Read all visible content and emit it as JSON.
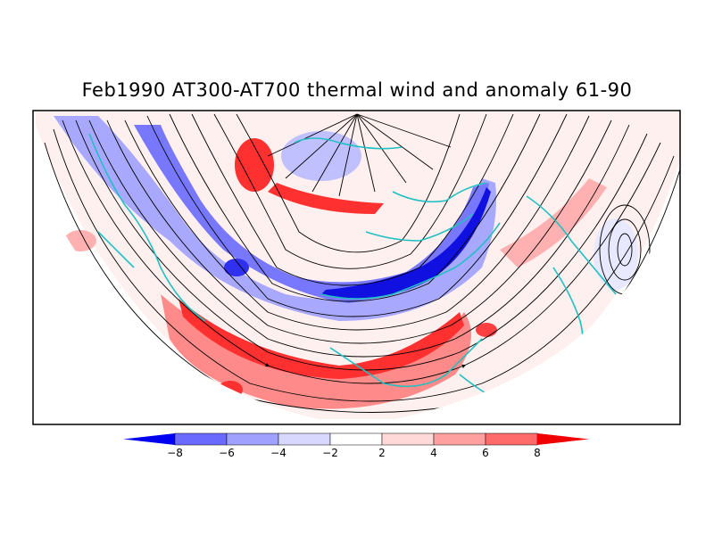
{
  "title": "Feb1990 AT300-AT700 thermal wind and anomaly 61-90",
  "colorbar": {
    "labels": [
      "-8",
      "-6",
      "-4",
      "-2",
      "2",
      "4",
      "6",
      "8"
    ],
    "colors": [
      "#0000f0",
      "#6a6aff",
      "#a0a0ff",
      "#d8d8ff",
      "#ffffff",
      "#ffd8d8",
      "#ffa0a0",
      "#ff6a6a",
      "#f00000"
    ]
  },
  "map": {
    "projection": "north-polar-stereographic",
    "coastline_color": "#20c0c0",
    "streamline_color": "#000000"
  }
}
